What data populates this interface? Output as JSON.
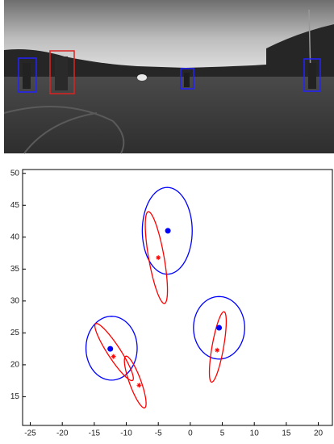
{
  "chart_data": {
    "type": "scatter",
    "xlim": [
      -26.2,
      22.2
    ],
    "ylim": [
      10.5,
      50.6
    ],
    "xticks": [
      -25,
      -20,
      -15,
      -10,
      -5,
      0,
      5,
      10,
      15,
      20
    ],
    "yticks": [
      15,
      20,
      25,
      30,
      35,
      40,
      45,
      50
    ],
    "series": [
      {
        "color": "#0000ff",
        "marker": "dot",
        "x": [
          -3.5,
          -12.5,
          4.5
        ],
        "values": [
          41,
          22.5,
          25.8
        ]
      },
      {
        "color": "#ff0000",
        "marker": "star",
        "x": [
          -5,
          -12,
          -8,
          4.2
        ],
        "values": [
          36.8,
          21.3,
          16.8,
          22.3
        ]
      }
    ],
    "ellipses": [
      {
        "color": "#0000ff",
        "cx": -3.6,
        "cy": 41,
        "a": 3.9,
        "b": 6.8,
        "angle": 0
      },
      {
        "color": "#0000ff",
        "cx": -12.3,
        "cy": 22.6,
        "a": 4,
        "b": 5,
        "angle": 0
      },
      {
        "color": "#0000ff",
        "cx": 4.5,
        "cy": 25.8,
        "a": 4,
        "b": 4.9,
        "angle": 0
      },
      {
        "color": "#ff0000",
        "cx": -5.3,
        "cy": 36.8,
        "a": 7.3,
        "b": 1.2,
        "angle": 100
      },
      {
        "color": "#ff0000",
        "cx": -11.9,
        "cy": 22,
        "a": 5.3,
        "b": 1,
        "angle": 123
      },
      {
        "color": "#ff0000",
        "cx": -8.6,
        "cy": 17.3,
        "a": 4.3,
        "b": 0.9,
        "angle": 110
      },
      {
        "color": "#ff0000",
        "cx": 4.3,
        "cy": 22.8,
        "a": 5.6,
        "b": 0.9,
        "angle": 80
      }
    ]
  }
}
